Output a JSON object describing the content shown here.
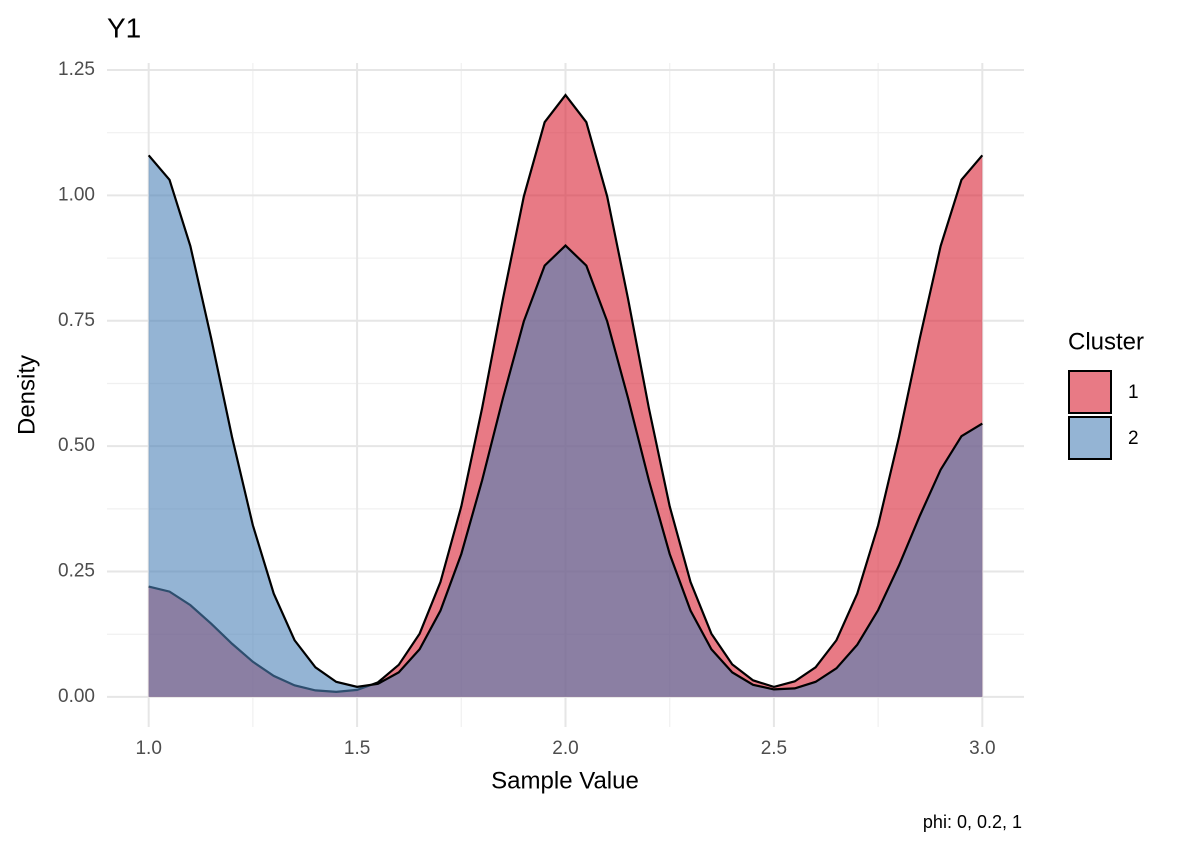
{
  "chart_data": {
    "type": "area",
    "title": "Y1",
    "x_label": "Sample Value",
    "y_label": "Density",
    "caption": "phi: 0, 0.2, 1",
    "legend_title": "Cluster",
    "legend_position": "right",
    "grid": true,
    "x": [
      1.0,
      1.05,
      1.1,
      1.15,
      1.2,
      1.25,
      1.3,
      1.35,
      1.4,
      1.45,
      1.5,
      1.55,
      1.6,
      1.65,
      1.7,
      1.75,
      1.8,
      1.85,
      1.9,
      1.95,
      2.0,
      2.05,
      2.1,
      2.15,
      2.2,
      2.25,
      2.3,
      2.35,
      2.4,
      2.45,
      2.5,
      2.55,
      2.6,
      2.65,
      2.7,
      2.75,
      2.8,
      2.85,
      2.9,
      2.95,
      3.0
    ],
    "series": [
      {
        "name": "1",
        "color": "#d92134",
        "values": [
          0.22,
          0.21,
          0.183,
          0.146,
          0.106,
          0.07,
          0.042,
          0.023,
          0.013,
          0.01,
          0.014,
          0.029,
          0.064,
          0.126,
          0.229,
          0.38,
          0.576,
          0.794,
          0.998,
          1.146,
          1.2,
          1.146,
          0.998,
          0.794,
          0.576,
          0.38,
          0.229,
          0.126,
          0.065,
          0.033,
          0.02,
          0.031,
          0.059,
          0.113,
          0.206,
          0.342,
          0.518,
          0.715,
          0.899,
          1.031,
          1.08
        ]
      },
      {
        "name": "2",
        "color": "#4d82b7",
        "values": [
          1.08,
          1.031,
          0.899,
          0.715,
          0.518,
          0.342,
          0.206,
          0.113,
          0.059,
          0.03,
          0.02,
          0.026,
          0.049,
          0.095,
          0.172,
          0.285,
          0.432,
          0.596,
          0.749,
          0.86,
          0.9,
          0.86,
          0.749,
          0.596,
          0.432,
          0.285,
          0.172,
          0.095,
          0.049,
          0.024,
          0.015,
          0.017,
          0.03,
          0.057,
          0.104,
          0.173,
          0.262,
          0.361,
          0.453,
          0.52,
          0.545
        ]
      }
    ],
    "xlim": [
      0.9,
      3.1
    ],
    "ylim": [
      -0.06,
      1.264
    ],
    "xticks": [
      {
        "value": 1,
        "label": "1.0"
      },
      1.5,
      {
        "value": 2,
        "label": "2.0"
      },
      2.5,
      {
        "value": 3,
        "label": "3.0"
      }
    ],
    "yticks": [
      {
        "value": 0,
        "label": "0.00"
      },
      0.25,
      {
        "value": 0.5,
        "label": "0.50"
      },
      0.75,
      {
        "value": 1,
        "label": "1.00"
      },
      1.25
    ],
    "minor_xticks": [
      1.25,
      1.75,
      2.25,
      2.75
    ],
    "minor_yticks": [
      0.125,
      0.375,
      0.625,
      0.875,
      1.125
    ]
  }
}
